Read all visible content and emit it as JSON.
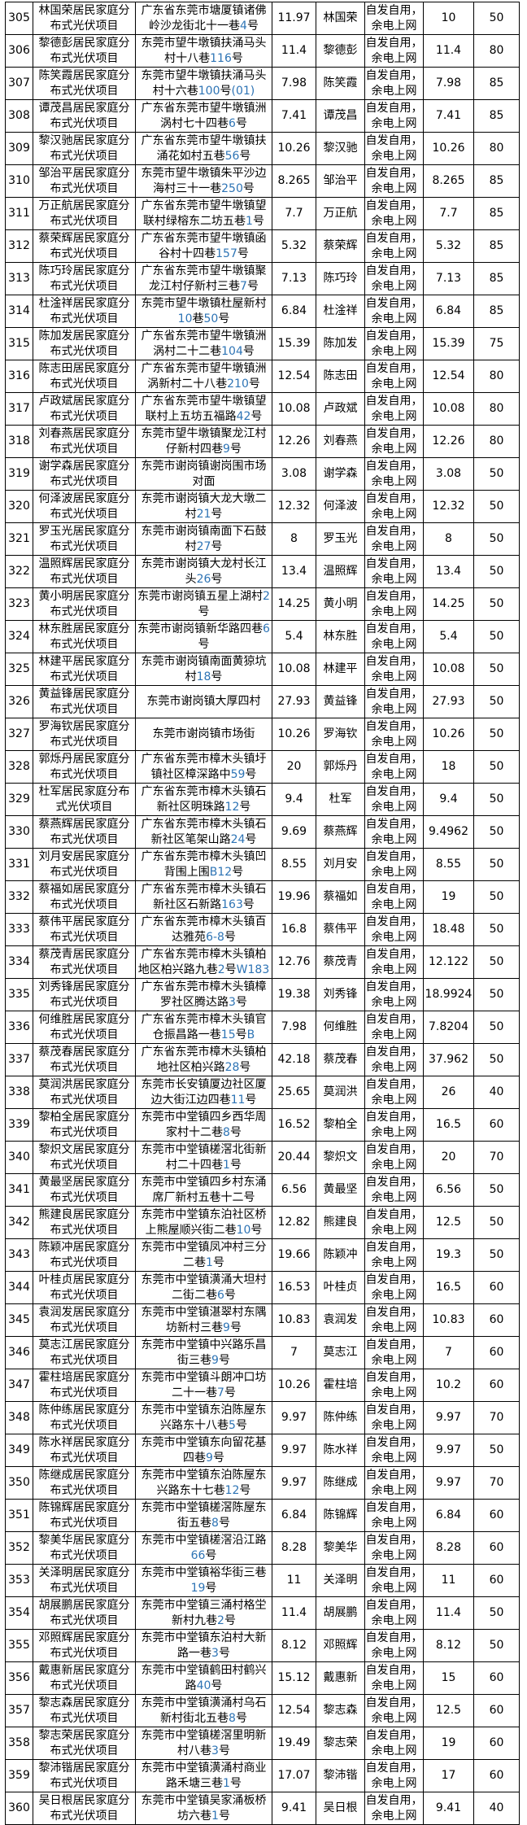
{
  "colors": {
    "address_numeral": "#2e74b5",
    "table_border": "#000000",
    "text": "#000000",
    "background": "#ffffff"
  },
  "table": {
    "grid_mode_label": "自发自用，余电上网",
    "rows": [
      {
        "seq": "305",
        "project": "林国荣居民家庭分布式光伏项目",
        "address": "广东省东莞市塘厦镇诸佛岭沙龙街北十一巷4号",
        "capacity": "11.97",
        "owner": "林国荣",
        "grid_capacity": "10",
        "percent": "50"
      },
      {
        "seq": "306",
        "project": "黎德彭居民家庭分布式光伏项目",
        "address": "东莞市望牛墩镇扶涌马头村十八巷116号",
        "capacity": "11.4",
        "owner": "黎德彭",
        "grid_capacity": "11.4",
        "percent": "80"
      },
      {
        "seq": "307",
        "project": "陈笑霞居民家庭分布式光伏项目",
        "address": "东莞市望牛墩镇扶涌马头村十六巷100号(01)",
        "capacity": "7.98",
        "owner": "陈笑霞",
        "grid_capacity": "7.98",
        "percent": "85"
      },
      {
        "seq": "308",
        "project": "谭茂昌居民家庭分布式光伏项目",
        "address": "广东省东莞市望牛墩镇洲涡村七十四巷6号",
        "capacity": "7.41",
        "owner": "谭茂昌",
        "grid_capacity": "7.41",
        "percent": "85"
      },
      {
        "seq": "309",
        "project": "黎汉驰居民家庭分布式光伏项目",
        "address": "广东省东莞市望牛墩镇扶涌花如村五巷56号",
        "capacity": "10.26",
        "owner": "黎汉驰",
        "grid_capacity": "10.26",
        "percent": "80"
      },
      {
        "seq": "310",
        "project": "邹治平居民家庭分布式光伏项目",
        "address": "东莞市望牛墩镇朱平沙边海村三十一巷250号",
        "capacity": "8.265",
        "owner": "邹治平",
        "grid_capacity": "8.265",
        "percent": "85"
      },
      {
        "seq": "311",
        "project": "万正航居民家庭分布式光伏项目",
        "address": "广东省东莞市望牛墩镇望联村绿榕东二坊五巷1号",
        "capacity": "7.7",
        "owner": "万正航",
        "grid_capacity": "7.7",
        "percent": "85"
      },
      {
        "seq": "312",
        "project": "蔡荣辉居民家庭分布式光伏项目",
        "address": "广东省东莞市望牛墩镇函谷村十四巷157号",
        "capacity": "5.32",
        "owner": "蔡荣辉",
        "grid_capacity": "5.32",
        "percent": "85"
      },
      {
        "seq": "313",
        "project": "陈巧玲居民家庭分布式光伏项目",
        "address": "广东省东莞市望牛墩镇聚龙江村仔新村三巷7号",
        "capacity": "7.13",
        "owner": "陈巧玲",
        "grid_capacity": "7.13",
        "percent": "85"
      },
      {
        "seq": "314",
        "project": "杜淦祥居民家庭分布式光伏项目",
        "address": "东莞市望牛墩镇杜屋新村10巷50号",
        "capacity": "6.84",
        "owner": "杜淦祥",
        "grid_capacity": "6.84",
        "percent": "85"
      },
      {
        "seq": "315",
        "project": "陈加发居民家庭分布式光伏项目",
        "address": "广东省东莞市望牛墩镇洲涡村二十二巷104号",
        "capacity": "15.39",
        "owner": "陈加发",
        "grid_capacity": "15.39",
        "percent": "75"
      },
      {
        "seq": "316",
        "project": "陈志田居民家庭分布式光伏项目",
        "address": "广东省东莞市望牛墩镇洲涡新村二十八巷210号",
        "capacity": "12.54",
        "owner": "陈志田",
        "grid_capacity": "12.54",
        "percent": "80"
      },
      {
        "seq": "317",
        "project": "卢政斌居民家庭分布式光伏项目",
        "address": "广东省东莞市望牛墩镇望联村上五坊五福路42号",
        "capacity": "10.08",
        "owner": "卢政斌",
        "grid_capacity": "10.08",
        "percent": "80"
      },
      {
        "seq": "318",
        "project": "刘春燕居民家庭分布式光伏项目",
        "address": "东莞市望牛墩镇聚龙江村仔新村四巷9号",
        "capacity": "12.26",
        "owner": "刘春燕",
        "grid_capacity": "12.26",
        "percent": "80"
      },
      {
        "seq": "319",
        "project": "谢学森居民家庭分布式光伏项目",
        "address": "东莞市谢岗镇谢岗围市场对面",
        "capacity": "3.08",
        "owner": "谢学森",
        "grid_capacity": "3.08",
        "percent": "50"
      },
      {
        "seq": "320",
        "project": "何泽波居民家庭分布式光伏项目",
        "address": "东莞市谢岗镇大龙大墩二村21号",
        "capacity": "12.32",
        "owner": "何泽波",
        "grid_capacity": "12.32",
        "percent": "50"
      },
      {
        "seq": "321",
        "project": "罗玉光居民家庭分布式光伏项目",
        "address": "东莞市谢岗镇南面下石鼓村27号",
        "capacity": "8",
        "owner": "罗玉光",
        "grid_capacity": "8",
        "percent": "50"
      },
      {
        "seq": "322",
        "project": "温照辉居民家庭分布式光伏项目",
        "address": "东莞市谢岗镇大龙村长江头26号",
        "capacity": "13.4",
        "owner": "温照辉",
        "grid_capacity": "13.4",
        "percent": "50"
      },
      {
        "seq": "323",
        "project": "黄小明居民家庭分布式光伏项目",
        "address": "东莞市谢岗镇五星上湖村2号",
        "capacity": "14.25",
        "owner": "黄小明",
        "grid_capacity": "14.25",
        "percent": "50"
      },
      {
        "seq": "324",
        "project": "林东胜居民家庭分布式光伏项目",
        "address": "东莞市谢岗镇新华路四巷6号",
        "capacity": "5.4",
        "owner": "林东胜",
        "grid_capacity": "5.4",
        "percent": "50"
      },
      {
        "seq": "325",
        "project": "林建平居民家庭分布式光伏项目",
        "address": "东莞市谢岗镇南面黄猄坑村18号",
        "capacity": "10.08",
        "owner": "林建平",
        "grid_capacity": "10.08",
        "percent": "50"
      },
      {
        "seq": "326",
        "project": "黄益锋居民家庭分布式光伏项目",
        "address": "东莞市谢岗镇大厚四村",
        "capacity": "27.93",
        "owner": "黄益锋",
        "grid_capacity": "27.93",
        "percent": "50"
      },
      {
        "seq": "327",
        "project": "罗海钦居民家庭分布式光伏项目",
        "address": "东莞市谢岗镇市场街",
        "capacity": "10.26",
        "owner": "罗海钦",
        "grid_capacity": "10.26",
        "percent": "50"
      },
      {
        "seq": "328",
        "project": "郭烁丹居民家庭分布式光伏项目",
        "address": "广东省东莞市樟木头镇圩镇社区樟深路中59号",
        "capacity": "20",
        "owner": "郭烁丹",
        "grid_capacity": "18",
        "percent": "50"
      },
      {
        "seq": "329",
        "project": "杜军居民家庭分布式光伏项目",
        "address": "广东省东莞市樟木头镇石新社区明珠路12号",
        "capacity": "9.4",
        "owner": "杜军",
        "grid_capacity": "9.4",
        "percent": "50"
      },
      {
        "seq": "330",
        "project": "蔡燕辉居民家庭分布式光伏项目",
        "address": "广东省东莞市樟木头镇石新社区笔架山路24号",
        "capacity": "9.69",
        "owner": "蔡燕辉",
        "grid_capacity": "9.4962",
        "percent": "50"
      },
      {
        "seq": "331",
        "project": "刘月安居民家庭分布式光伏项目",
        "address": "广东省东莞市樟木头镇凹背围上围B12号",
        "capacity": "8.55",
        "owner": "刘月安",
        "grid_capacity": "8.55",
        "percent": "50"
      },
      {
        "seq": "332",
        "project": "蔡福如居民家庭分布式光伏项目",
        "address": "广东省东莞市樟木头镇石新社区石新路163号",
        "capacity": "19.96",
        "owner": "蔡福如",
        "grid_capacity": "19",
        "percent": "50"
      },
      {
        "seq": "333",
        "project": "蔡伟平居民家庭分布式光伏项目",
        "address": "广东省东莞市樟木头镇百达雅苑6-8号",
        "capacity": "16.8",
        "owner": "蔡伟平",
        "grid_capacity": "18.48",
        "percent": "50"
      },
      {
        "seq": "334",
        "project": "蔡茂青居民家庭分布式光伏项目",
        "address": "广东省东莞市樟木头镇柏地区柏兴路九巷2号W183",
        "capacity": "12.76",
        "owner": "蔡茂青",
        "grid_capacity": "12.122",
        "percent": "50"
      },
      {
        "seq": "335",
        "project": "刘秀锋居民家庭分布式光伏项目",
        "address": "广东省东莞市樟木头镇樟罗社区腾达路3号",
        "capacity": "19.38",
        "owner": "刘秀锋",
        "grid_capacity": "18.9924",
        "percent": "50"
      },
      {
        "seq": "336",
        "project": "何维胜居民家庭分布式光伏项目",
        "address": "广东省东莞市樟木头镇官仓振昌路一巷15号B",
        "capacity": "7.98",
        "owner": "何维胜",
        "grid_capacity": "7.8204",
        "percent": "50"
      },
      {
        "seq": "337",
        "project": "蔡茂春居民家庭分布式光伏项目",
        "address": "广东省东莞市樟木头镇柏地社区柏兴路28号",
        "capacity": "42.18",
        "owner": "蔡茂春",
        "grid_capacity": "37.962",
        "percent": "50"
      },
      {
        "seq": "338",
        "project": "莫润洪居民家庭分布式光伏项目",
        "address": "东莞市长安镇厦边社区厦边大街江边四巷11号",
        "capacity": "25.65",
        "owner": "莫润洪",
        "grid_capacity": "26",
        "percent": "40"
      },
      {
        "seq": "339",
        "project": "黎柏全居民家庭分布式光伏项目",
        "address": "东莞市中堂镇四乡西华周家村十二巷8号",
        "capacity": "16.52",
        "owner": "黎柏全",
        "grid_capacity": "16.5",
        "percent": "60"
      },
      {
        "seq": "340",
        "project": "黎炽文居民家庭分布式光伏项目",
        "address": "东莞市中堂镇槎滘北街新村二十四巷1号",
        "capacity": "20.44",
        "owner": "黎炽文",
        "grid_capacity": "20",
        "percent": "70"
      },
      {
        "seq": "341",
        "project": "黄最坚居民家庭分布式光伏项目",
        "address": "东莞市中堂镇四乡村东涌席厂新村五巷十二号",
        "capacity": "6.56",
        "owner": "黄最坚",
        "grid_capacity": "6.56",
        "percent": "50"
      },
      {
        "seq": "342",
        "project": "熊建良居民家庭分布式光伏项目",
        "address": "东莞市中堂镇东泊社区桥上熊屋顺兴街二巷10号",
        "capacity": "12.82",
        "owner": "熊建良",
        "grid_capacity": "12.5",
        "percent": "50"
      },
      {
        "seq": "343",
        "project": "陈颖冲居民家庭分布式光伏项目",
        "address": "东莞市中堂镇凤冲村三分二巷1号",
        "capacity": "19.66",
        "owner": "陈颖冲",
        "grid_capacity": "19.3",
        "percent": "50"
      },
      {
        "seq": "344",
        "project": "叶桂贞居民家庭分布式光伏项目",
        "address": "东莞市中堂镇潢涌大坦村二街二巷6号",
        "capacity": "16.53",
        "owner": "叶桂贞",
        "grid_capacity": "16.5",
        "percent": "60"
      },
      {
        "seq": "345",
        "project": "袁润发居民家庭分布式光伏项目",
        "address": "东莞市中堂镇湛翠村东隅坊新村三巷9号",
        "capacity": "10.83",
        "owner": "袁润发",
        "grid_capacity": "10.83",
        "percent": "60"
      },
      {
        "seq": "346",
        "project": "莫志江居民家庭分布式光伏项目",
        "address": "东莞市中堂镇中兴路乐昌街三巷9号",
        "capacity": "7",
        "owner": "莫志江",
        "grid_capacity": "7",
        "percent": "60"
      },
      {
        "seq": "347",
        "project": "霍柱培居民家庭分布式光伏项目",
        "address": "东莞市中堂镇斗朗冲口坊二十一巷7号",
        "capacity": "10.26",
        "owner": "霍柱培",
        "grid_capacity": "10.2",
        "percent": "60"
      },
      {
        "seq": "348",
        "project": "陈仲练居民家庭分布式光伏项目",
        "address": "东莞市中堂镇东泊陈屋东兴路东十八巷5号",
        "capacity": "9.97",
        "owner": "陈仲练",
        "grid_capacity": "9.97",
        "percent": "70"
      },
      {
        "seq": "349",
        "project": "陈水祥居民家庭分布式光伏项目",
        "address": "东莞市中堂镇东向留花基四巷9号",
        "capacity": "9.97",
        "owner": "陈水祥",
        "grid_capacity": "9.97",
        "percent": "50"
      },
      {
        "seq": "350",
        "project": "陈继成居民家庭分布式光伏项目",
        "address": "东莞市中堂镇东泊陈屋东兴路东十七巷12号",
        "capacity": "9.97",
        "owner": "陈继成",
        "grid_capacity": "9.97",
        "percent": "70"
      },
      {
        "seq": "351",
        "project": "陈锦辉居民家庭分布式光伏项目",
        "address": "东莞市中堂镇槎滘陈屋东街五巷8号",
        "capacity": "6.84",
        "owner": "陈锦辉",
        "grid_capacity": "6.84",
        "percent": "60"
      },
      {
        "seq": "352",
        "project": "黎美华居民家庭分布式光伏项目",
        "address": "东莞市中堂镇槎滘沿江路66号",
        "capacity": "8.28",
        "owner": "黎美华",
        "grid_capacity": "8.28",
        "percent": "60"
      },
      {
        "seq": "353",
        "project": "关泽明居民家庭分布式光伏项目",
        "address": "东莞市中堂镇裕华街三巷19号",
        "capacity": "11",
        "owner": "关泽明",
        "grid_capacity": "11",
        "percent": "60"
      },
      {
        "seq": "354",
        "project": "胡展鹏居民家庭分布式光伏项目",
        "address": "东莞市中堂镇三涌村格坣新村九巷2号",
        "capacity": "11.4",
        "owner": "胡展鹏",
        "grid_capacity": "11.4",
        "percent": "50"
      },
      {
        "seq": "355",
        "project": "邓照辉居民家庭分布式光伏项目",
        "address": "东莞市中堂镇东泊村大新路一巷3号",
        "capacity": "8.12",
        "owner": "邓照辉",
        "grid_capacity": "8.12",
        "percent": "50"
      },
      {
        "seq": "356",
        "project": "戴惠新居民家庭分布式光伏项目",
        "address": "东莞市中堂镇鹤田村鹤兴路40号",
        "capacity": "15.12",
        "owner": "戴惠新",
        "grid_capacity": "15",
        "percent": "60"
      },
      {
        "seq": "357",
        "project": "黎志森居民家庭分布式光伏项目",
        "address": "东莞市中堂镇潢涌村乌石新村街北五巷8号",
        "capacity": "12.54",
        "owner": "黎志森",
        "grid_capacity": "12.5",
        "percent": "60"
      },
      {
        "seq": "358",
        "project": "黎志荣居民家庭分布式光伏项目",
        "address": "东莞市中堂镇槎滘里明新村八巷3号",
        "capacity": "19.49",
        "owner": "黎志荣",
        "grid_capacity": "19",
        "percent": "60"
      },
      {
        "seq": "359",
        "project": "黎沛锴居民家庭分布式光伏项目",
        "address": "东莞市中堂镇潢涌村商业路禾塘三巷1号",
        "capacity": "17.07",
        "owner": "黎沛锴",
        "grid_capacity": "17",
        "percent": "60"
      },
      {
        "seq": "360",
        "project": "吴日根居民家庭分布式光伏项目",
        "address": "东莞市中堂镇吴家涌板桥坊六巷1号",
        "capacity": "9.41",
        "owner": "吴日根",
        "grid_capacity": "9.41",
        "percent": "40"
      }
    ]
  }
}
